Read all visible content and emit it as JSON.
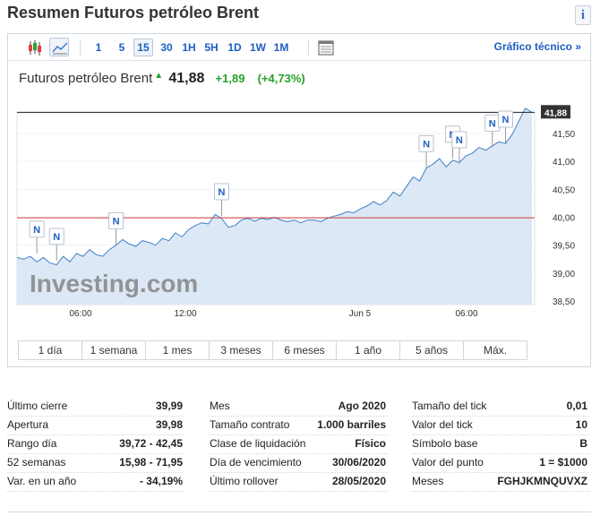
{
  "header": {
    "title": "Resumen Futuros petróleo Brent",
    "info_glyph": "i"
  },
  "toolbar": {
    "timeframes": [
      "1",
      "5",
      "15",
      "30",
      "1H",
      "5H",
      "1D",
      "1W",
      "1M"
    ],
    "active_timeframe": "15",
    "technical_link": "Gráfico técnico »"
  },
  "quote": {
    "name": "Futuros petróleo Brent",
    "price": "41,88",
    "change": "+1,89",
    "change_pct": "(+4,73%)",
    "up_color": "#25a12a"
  },
  "chart_data": {
    "type": "area",
    "current_price_label": "41,88",
    "y_ticks": [
      "41,50",
      "41,00",
      "40,50",
      "40,00",
      "39,50",
      "39,00",
      "38,50"
    ],
    "y_tick_values": [
      41.5,
      41.0,
      40.5,
      40.0,
      39.5,
      39.0,
      38.5
    ],
    "ylim": [
      38.5,
      41.88
    ],
    "x_ticks": [
      "06:00",
      "12:00",
      "Jun 5",
      "06:00"
    ],
    "reference_line": 39.99,
    "watermark": "Investing.com",
    "series": [
      {
        "values": [
          39.28,
          39.25,
          39.3,
          39.2,
          39.28,
          39.18,
          39.15,
          39.3,
          39.2,
          39.35,
          39.3,
          39.42,
          39.33,
          39.3,
          39.42,
          39.5,
          39.6,
          39.52,
          39.48,
          39.58,
          39.55,
          39.5,
          39.62,
          39.58,
          39.72,
          39.65,
          39.78,
          39.85,
          39.9,
          39.88,
          40.05,
          39.98,
          39.82,
          39.85,
          39.95,
          39.98,
          39.93,
          39.98,
          39.96,
          40.0,
          39.95,
          39.92,
          39.95,
          39.9,
          39.95,
          39.95,
          39.92,
          39.98,
          40.02,
          40.05,
          40.1,
          40.08,
          40.15,
          40.2,
          40.28,
          40.22,
          40.3,
          40.45,
          40.38,
          40.55,
          40.72,
          40.65,
          40.88,
          40.95,
          41.05,
          40.9,
          41.02,
          40.98,
          41.1,
          41.15,
          41.25,
          41.2,
          41.28,
          41.35,
          41.32,
          41.48,
          41.72,
          41.95,
          41.88
        ],
        "color": "#3f7fc7"
      }
    ],
    "news_markers": [
      {
        "label": "N",
        "i": 3,
        "v": 39.45
      },
      {
        "label": "N",
        "i": 6,
        "v": 39.32
      },
      {
        "label": "N",
        "i": 15,
        "v": 39.6
      },
      {
        "label": "N",
        "i": 31,
        "v": 40.12
      },
      {
        "label": "N",
        "i": 62,
        "v": 40.98
      },
      {
        "label": "N",
        "i": 66,
        "v": 41.15
      },
      {
        "label": "N",
        "i": 67,
        "v": 41.05
      },
      {
        "label": "N",
        "i": 72,
        "v": 41.35
      },
      {
        "label": "N",
        "i": 74,
        "v": 41.42
      }
    ]
  },
  "periods": [
    "1 día",
    "1 semana",
    "1 mes",
    "3 meses",
    "6 meses",
    "1 año",
    "5 años",
    "Máx."
  ],
  "stats": {
    "col1": [
      {
        "label": "Último cierre",
        "value": "39,99"
      },
      {
        "label": "Apertura",
        "value": "39,98"
      },
      {
        "label": "Rango día",
        "value": "39,72 - 42,45"
      },
      {
        "label": "52 semanas",
        "value": "15,98 - 71,95"
      },
      {
        "label": "Var. en un año",
        "value": "- 34,19%"
      }
    ],
    "col2": [
      {
        "label": "Mes",
        "value": "Ago 2020"
      },
      {
        "label": "Tamaño contrato",
        "value": "1.000 barriles"
      },
      {
        "label": "Clase de liquidación",
        "value": "Físico"
      },
      {
        "label": "Día de vencimiento",
        "value": "30/06/2020"
      },
      {
        "label": "Último rollover",
        "value": "28/05/2020"
      }
    ],
    "col3": [
      {
        "label": "Tamaño del tick",
        "value": "0,01"
      },
      {
        "label": "Valor del tick",
        "value": "10"
      },
      {
        "label": "Símbolo base",
        "value": "B"
      },
      {
        "label": "Valor del punto",
        "value": "1 = $1000"
      },
      {
        "label": "Meses",
        "value": "FGHJKMNQUVXZ"
      }
    ]
  }
}
